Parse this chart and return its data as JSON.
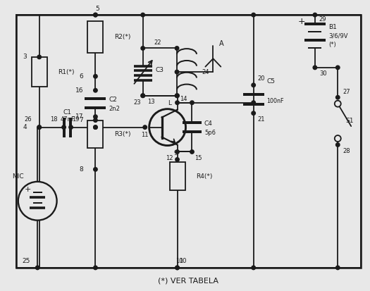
{
  "caption": "(*) VER TABELA",
  "bg_color": "#e8e8e8",
  "lc": "#1a1a1a",
  "lw": 1.3,
  "nr": 0.055,
  "xlim": [
    0,
    10.5
  ],
  "ylim": [
    0,
    8.26
  ]
}
